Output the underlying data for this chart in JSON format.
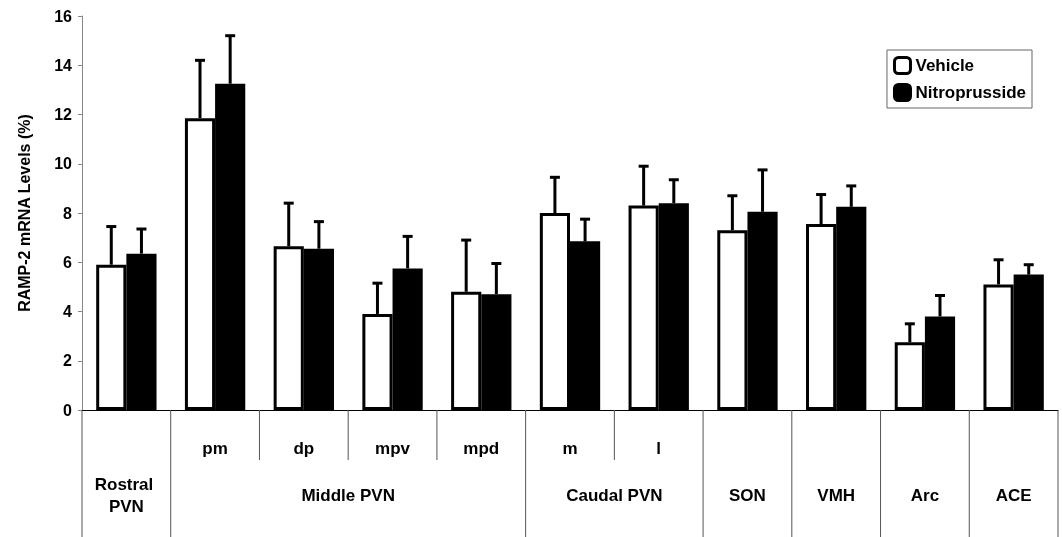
{
  "chart_data": {
    "type": "bar",
    "ylabel": "RAMP-2 mRNA Levels (%)",
    "categories": [
      "Rostral PVN",
      "pm",
      "dp",
      "mpv",
      "mpd",
      "m",
      "l",
      "SON",
      "VMH",
      "Arc",
      "ACE"
    ],
    "annotations": [
      "Middle PVN",
      "Caudal PVN"
    ],
    "series": [
      {
        "name": "Vehicle",
        "color": "#ffffff",
        "values": [
          5.9,
          11.85,
          6.65,
          3.9,
          4.8,
          8.0,
          8.3,
          7.3,
          7.55,
          2.75,
          5.1
        ],
        "errors": [
          [
            5.9,
            7.45
          ],
          [
            11.85,
            14.2
          ],
          [
            6.65,
            8.4
          ],
          [
            3.9,
            5.15
          ],
          [
            4.8,
            6.9
          ],
          [
            8.0,
            9.45
          ],
          [
            8.3,
            9.9
          ],
          [
            7.3,
            8.7
          ],
          [
            7.55,
            8.75
          ],
          [
            2.75,
            3.5
          ],
          [
            5.1,
            6.1
          ]
        ]
      },
      {
        "name": "Nitroprusside",
        "color": "#000000",
        "values": [
          6.35,
          13.25,
          6.55,
          5.75,
          4.7,
          6.85,
          8.4,
          8.05,
          8.25,
          3.8,
          5.5
        ],
        "errors": [
          [
            6.35,
            7.35
          ],
          [
            13.25,
            15.2
          ],
          [
            6.55,
            7.65
          ],
          [
            5.75,
            7.05
          ],
          [
            4.7,
            5.95
          ],
          [
            6.85,
            7.75
          ],
          [
            8.4,
            9.35
          ],
          [
            8.05,
            9.75
          ],
          [
            8.25,
            9.1
          ],
          [
            3.8,
            4.65
          ],
          [
            5.5,
            5.9
          ]
        ]
      }
    ],
    "ylim": [
      0,
      16
    ],
    "yticks": [
      0,
      2,
      4,
      6,
      8,
      10,
      12,
      14,
      16
    ],
    "grid": false,
    "legend": "top right"
  }
}
